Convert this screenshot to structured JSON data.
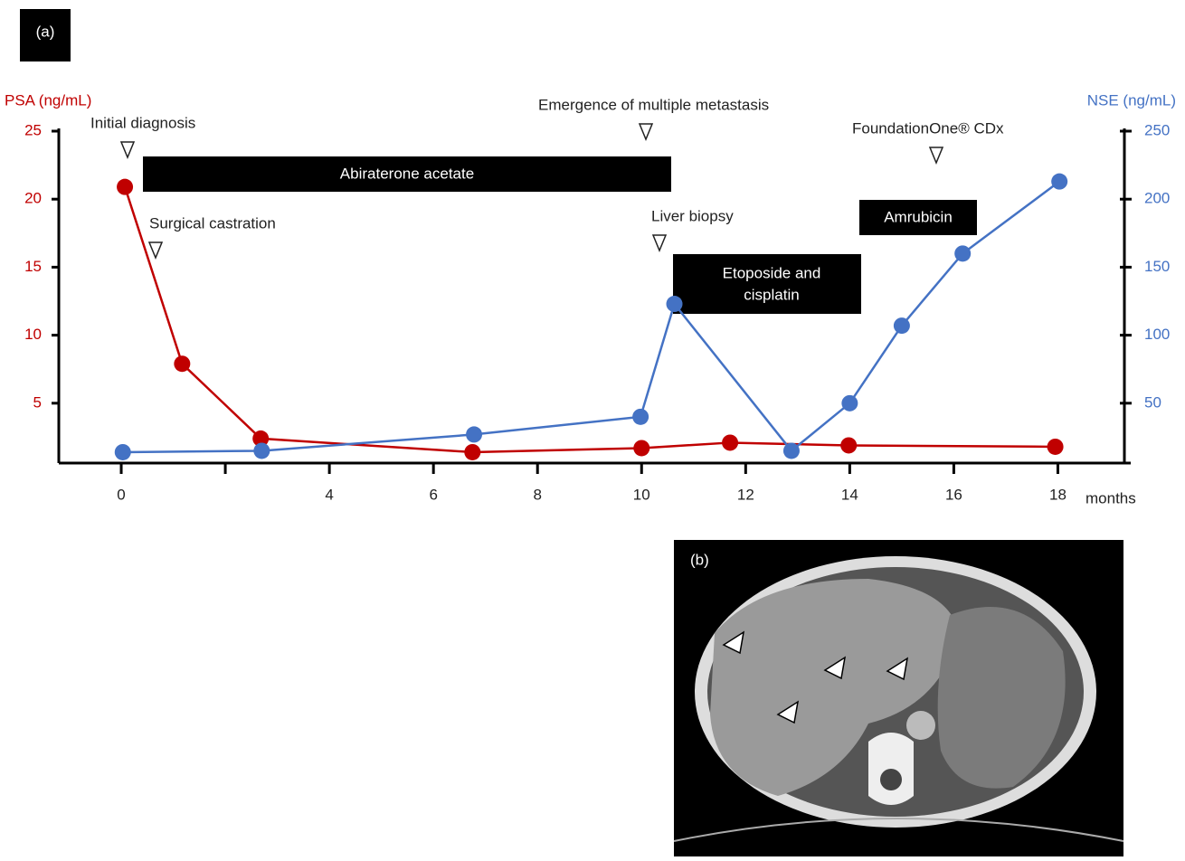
{
  "panel_a_label": "(a)",
  "panel_b_label": "(b)",
  "chart_data": {
    "type": "line",
    "x_unit_label": "months",
    "xlim": [
      -1.2,
      19.4
    ],
    "xticks": [
      0,
      {
        "value": 2,
        "label": null
      },
      4,
      6,
      8,
      10,
      12,
      14,
      16,
      18
    ],
    "ylim": [
      0.6,
      25
    ],
    "yticks": [
      5,
      10,
      15,
      20,
      25
    ],
    "y2lim": [
      6,
      250
    ],
    "y2ticks": [
      50,
      100,
      150,
      200,
      250
    ],
    "series": [
      {
        "name": "PSA (ng/mL)",
        "color": "#c00000",
        "axis": "y",
        "x": [
          0.07,
          1.17,
          2.68,
          6.75,
          10.0,
          11.7,
          13.98,
          17.95
        ],
        "values": [
          20.9,
          7.9,
          2.4,
          1.4,
          1.7,
          2.1,
          1.9,
          1.8
        ]
      },
      {
        "name": "NSE (ng/mL)",
        "color": "#4472c4",
        "axis": "y2",
        "x": [
          0.03,
          2.7,
          6.78,
          9.98,
          10.63,
          12.88,
          14.0,
          15.0,
          16.17,
          18.03
        ],
        "values": [
          14,
          15,
          27,
          40,
          123,
          15,
          50,
          107,
          160,
          213
        ]
      }
    ],
    "annotations": {
      "initial_diagnosis": "Initial diagnosis",
      "surgical_castration": "Surgical castration",
      "emergence": "Emergence of multiple metastasis",
      "liver_biopsy": "Liver biopsy",
      "foundation": "FoundationOne® CDx",
      "abiraterone": "Abiraterone acetate",
      "amrubicin": "Amrubicin",
      "etoposide_line1": "Etoposide and",
      "etoposide_line2": "cisplatin"
    }
  }
}
